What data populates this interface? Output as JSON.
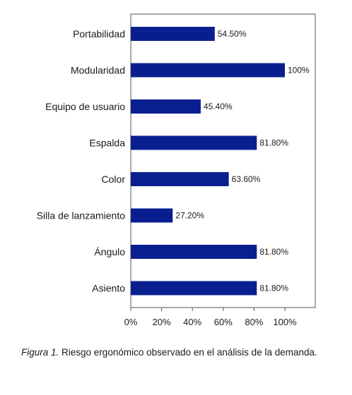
{
  "chart_data": {
    "type": "bar",
    "orientation": "horizontal",
    "categories": [
      "Portabilidad",
      "Modularidad",
      "Equipo de usuario",
      "Espalda",
      "Color",
      "Silla de lanzamiento",
      "Ángulo",
      "Asiento"
    ],
    "values": [
      54.5,
      100,
      45.4,
      81.8,
      63.6,
      27.2,
      81.8,
      81.8
    ],
    "value_labels": [
      "54.50%",
      "100%",
      "45.40%",
      "81.80%",
      "63.60%",
      "27.20%",
      "81.80%",
      "81.80%"
    ],
    "x_ticks": [
      "0%",
      "20%",
      "40%",
      "60%",
      "80%",
      "100%"
    ],
    "xlim": [
      0,
      100
    ],
    "grid": false,
    "legend": "none",
    "bar_color": "#0a1f8f"
  },
  "caption": {
    "figure_label": "Figura 1.",
    "text": " Riesgo ergonómico observado en el análisis de la demanda."
  }
}
